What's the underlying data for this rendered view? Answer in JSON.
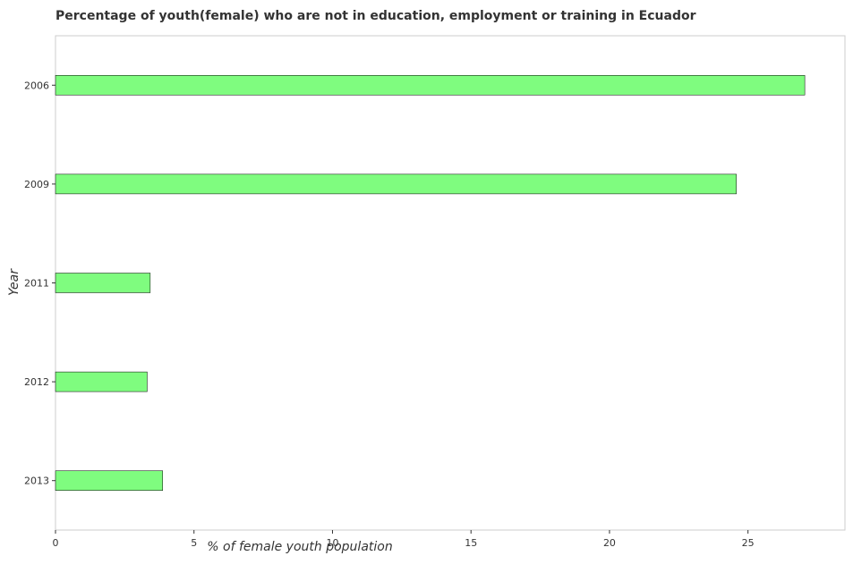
{
  "chart_data": {
    "type": "bar",
    "orientation": "horizontal",
    "title": "Percentage of youth(female) who are not in education, employment or training in Ecuador",
    "xlabel": "% of female youth population",
    "ylabel": "Year",
    "categories": [
      "2006",
      "2009",
      "2011",
      "2012",
      "2013"
    ],
    "values": [
      27.05,
      24.58,
      3.42,
      3.31,
      3.87
    ],
    "xlim": [
      0,
      28.5
    ],
    "xticks": [
      0,
      5,
      10,
      15,
      20,
      25
    ],
    "xtick_labels": [
      "0",
      "5",
      "10",
      "15",
      "20",
      "25"
    ],
    "bar_color": "#7ffc7f",
    "grid": false
  }
}
